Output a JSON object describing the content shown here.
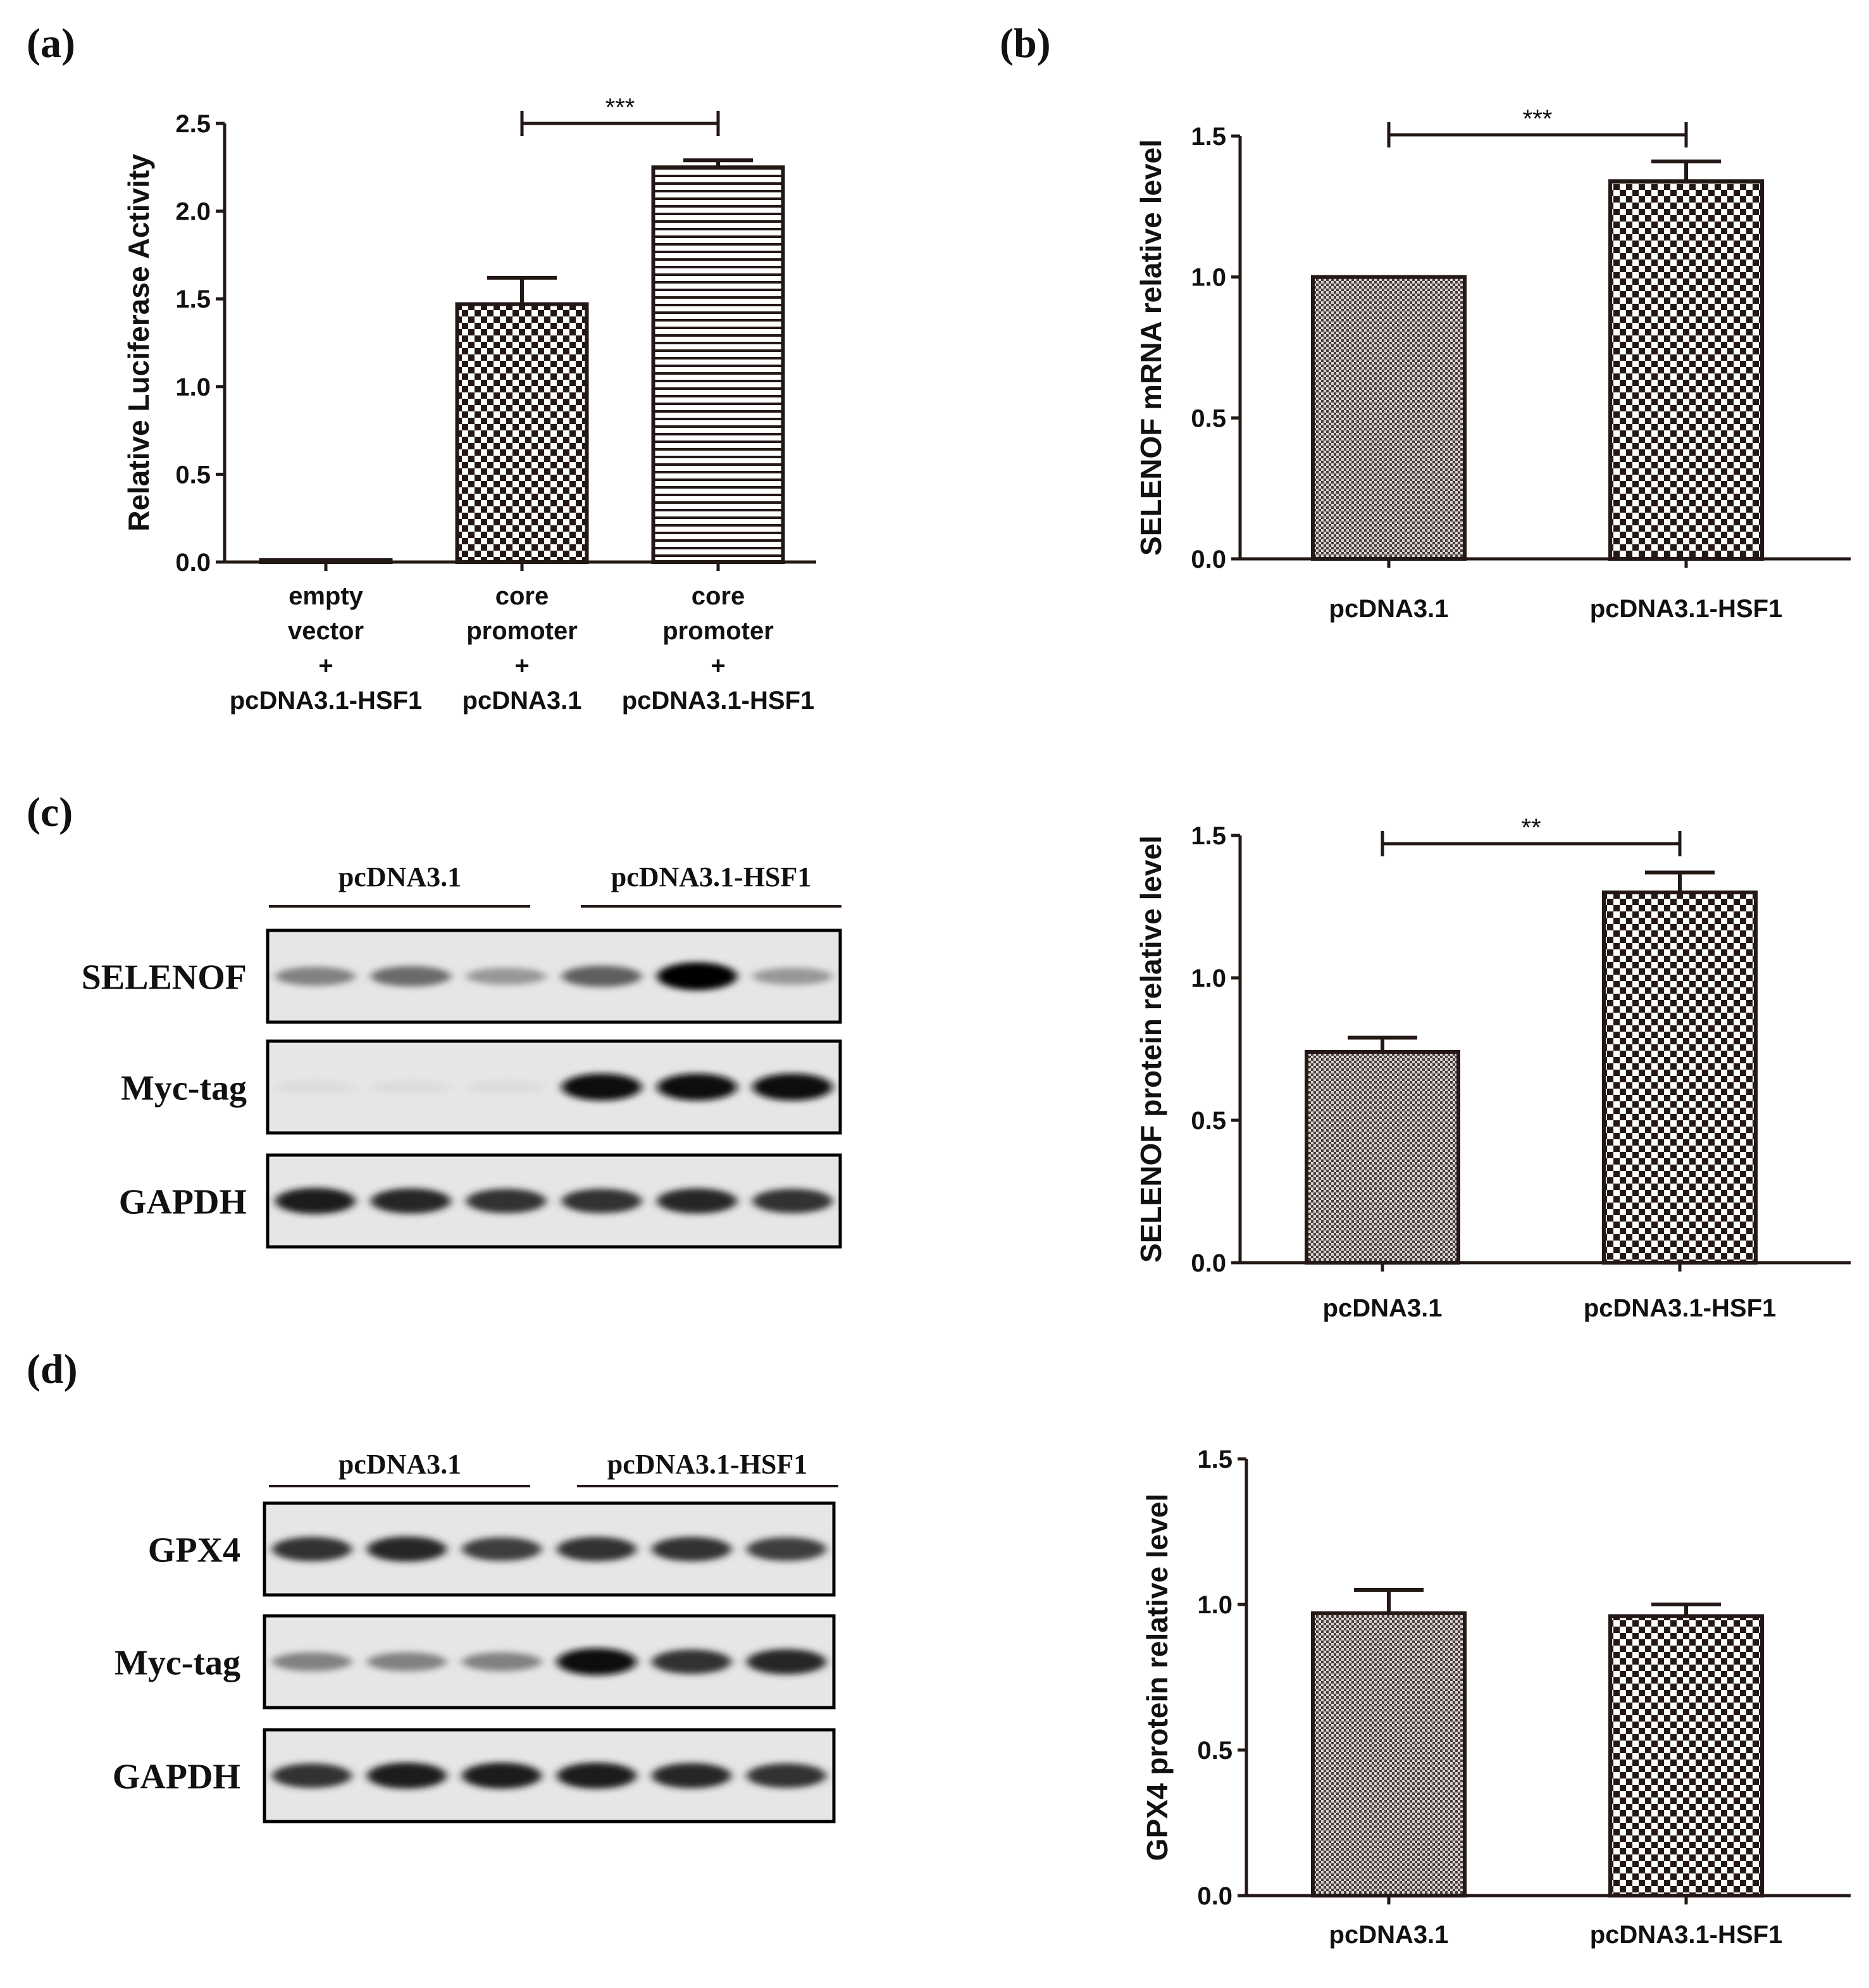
{
  "panels": {
    "a": "(a)",
    "b": "(b)",
    "c": "(c)",
    "d": "(d)"
  },
  "chart_data": [
    {
      "id": "a",
      "type": "bar",
      "ylabel": "Relative Luciferase Activity",
      "ylim": [
        0,
        2.5
      ],
      "yticks": [
        "0.0",
        "0.5",
        "1.0",
        "1.5",
        "2.0",
        "2.5"
      ],
      "categories": [
        [
          "empty",
          "vector",
          "+",
          "pcDNA3.1-HSF1"
        ],
        [
          "core",
          "promoter",
          "+",
          "pcDNA3.1"
        ],
        [
          "core",
          "promoter",
          "+",
          "pcDNA3.1-HSF1"
        ]
      ],
      "values": [
        0.01,
        1.47,
        2.25
      ],
      "errors": [
        0.0,
        0.15,
        0.04
      ],
      "patterns": [
        "none",
        "checker",
        "stripes"
      ],
      "significance": [
        {
          "from": 1,
          "to": 2,
          "label": "***"
        }
      ]
    },
    {
      "id": "b",
      "type": "bar",
      "ylabel": "SELENOF mRNA relative level",
      "ylim": [
        0,
        1.5
      ],
      "yticks": [
        "0.0",
        "0.5",
        "1.0",
        "1.5"
      ],
      "categories": [
        [
          "pcDNA3.1"
        ],
        [
          "pcDNA3.1-HSF1"
        ]
      ],
      "values": [
        1.0,
        1.34
      ],
      "errors": [
        0.0,
        0.07
      ],
      "patterns": [
        "fine",
        "checker"
      ],
      "significance": [
        {
          "from": 0,
          "to": 1,
          "label": "***"
        }
      ]
    },
    {
      "id": "c",
      "type": "bar",
      "ylabel": "SELENOF protein relative level",
      "ylim": [
        0,
        1.5
      ],
      "yticks": [
        "0.0",
        "0.5",
        "1.0",
        "1.5"
      ],
      "categories": [
        [
          "pcDNA3.1"
        ],
        [
          "pcDNA3.1-HSF1"
        ]
      ],
      "values": [
        0.74,
        1.3
      ],
      "errors": [
        0.05,
        0.07
      ],
      "patterns": [
        "fine",
        "checker"
      ],
      "significance": [
        {
          "from": 0,
          "to": 1,
          "label": "**"
        }
      ]
    },
    {
      "id": "d",
      "type": "bar",
      "ylabel": "GPX4 protein relative level",
      "ylim": [
        0,
        1.5
      ],
      "yticks": [
        "0.0",
        "0.5",
        "1.0",
        "1.5"
      ],
      "categories": [
        [
          "pcDNA3.1"
        ],
        [
          "pcDNA3.1-HSF1"
        ]
      ],
      "values": [
        0.97,
        0.96
      ],
      "errors": [
        0.08,
        0.04
      ],
      "patterns": [
        "fine",
        "checker"
      ],
      "significance": []
    }
  ],
  "blots": {
    "c": {
      "groups": [
        "pcDNA3.1",
        "pcDNA3.1-HSF1"
      ],
      "rows": [
        {
          "label": "SELENOF",
          "intensities": [
            0.45,
            0.55,
            0.35,
            0.6,
            1.0,
            0.35
          ]
        },
        {
          "label": "Myc-tag",
          "intensities": [
            0.05,
            0.05,
            0.05,
            0.95,
            0.95,
            0.95
          ]
        },
        {
          "label": "GAPDH",
          "intensities": [
            0.9,
            0.85,
            0.8,
            0.8,
            0.85,
            0.8
          ]
        }
      ]
    },
    "d": {
      "groups": [
        "pcDNA3.1",
        "pcDNA3.1-HSF1"
      ],
      "rows": [
        {
          "label": "GPX4",
          "intensities": [
            0.8,
            0.85,
            0.75,
            0.8,
            0.8,
            0.75
          ]
        },
        {
          "label": "Myc-tag",
          "intensities": [
            0.45,
            0.45,
            0.45,
            0.95,
            0.8,
            0.85
          ]
        },
        {
          "label": "GAPDH",
          "intensities": [
            0.8,
            0.9,
            0.9,
            0.9,
            0.85,
            0.8
          ]
        }
      ]
    }
  },
  "colors": {
    "ink": "#231815",
    "blot_bg": "#e6e6e6"
  }
}
